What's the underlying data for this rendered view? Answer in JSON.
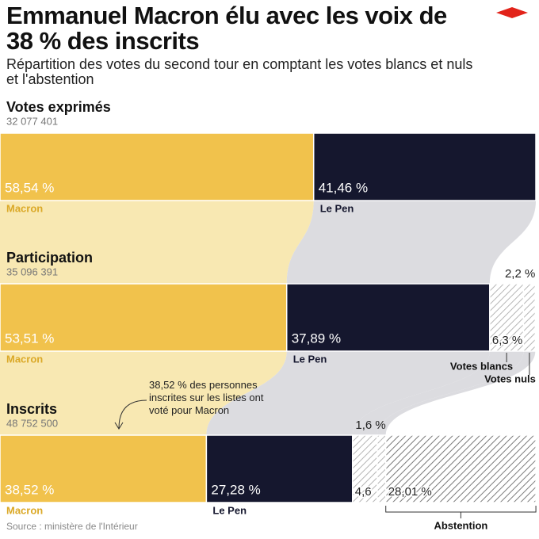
{
  "chart_data": {
    "type": "stacked_flow_bar",
    "title": "Emmanuel Macron élu avec les voix de 38 % des inscrits",
    "subtitle": "Répartition des votes du second tour en comptant les votes blancs et nuls et l'abstention",
    "categories": [
      "Votes exprimés",
      "Participation",
      "Inscrits"
    ],
    "category_counts": [
      "32 077 401",
      "35 096 391",
      "48 752 500"
    ],
    "xlim": [
      0,
      100
    ],
    "series": [
      {
        "name": "Macron",
        "color": "#f1c24c",
        "values": [
          58.54,
          53.51,
          38.52
        ],
        "value_labels": [
          "58,54 %",
          "53,51 %",
          "38,52 %"
        ]
      },
      {
        "name": "Le Pen",
        "color": "#15172e",
        "values": [
          41.46,
          37.89,
          27.28
        ],
        "value_labels": [
          "41,46 %",
          "37,89 %",
          "27,28 %"
        ]
      },
      {
        "name": "Votes blancs",
        "color": "#b5b5b5",
        "pattern": "hatch",
        "values": [
          null,
          6.3,
          4.6
        ],
        "value_labels": [
          null,
          "6,3 %",
          "4,6"
        ]
      },
      {
        "name": "Votes nuls",
        "color": "#b5b5b5",
        "pattern": "hatch",
        "values": [
          null,
          2.2,
          1.6
        ],
        "value_labels": [
          null,
          "2,2 %",
          "1,6 %"
        ]
      },
      {
        "name": "Abstention",
        "color": "#7a7a7a",
        "pattern": "hatch",
        "values": [
          null,
          null,
          28.01
        ],
        "value_labels": [
          null,
          null,
          "28,01 %"
        ]
      }
    ],
    "annotation": "38,52 % des personnes inscrites sur les listes ont voté pour Macron",
    "source": "Source : ministère de l'Intérieur"
  }
}
